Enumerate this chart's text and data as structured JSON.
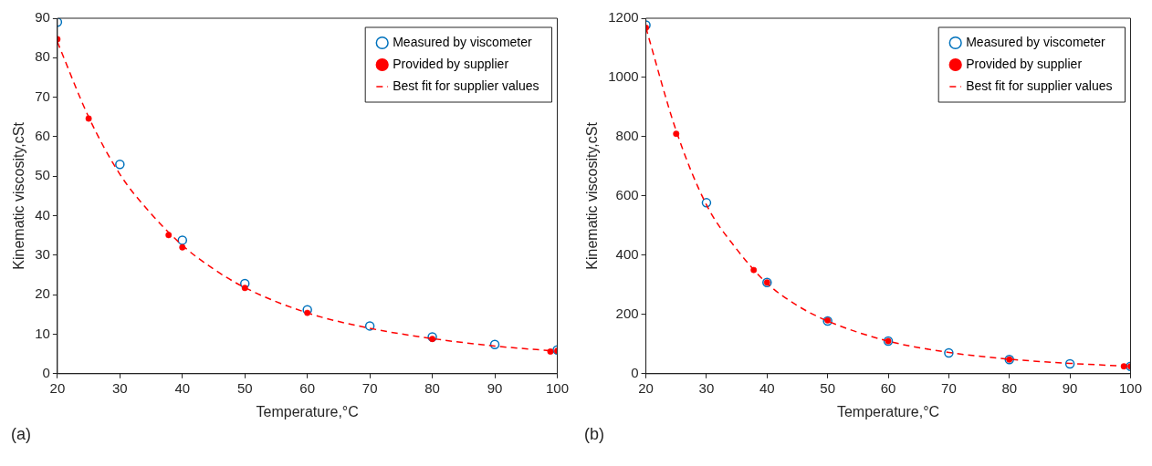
{
  "chart_data": [
    {
      "type": "scatter",
      "xlabel": "Temperature,°C",
      "ylabel": "Kinematic viscosity,cSt",
      "annotations": [
        "(a)"
      ],
      "xlim": [
        20,
        100
      ],
      "xticks": [
        20,
        30,
        40,
        50,
        60,
        70,
        80,
        90,
        100
      ],
      "ylim": [
        0,
        90
      ],
      "yticks": [
        0,
        10,
        20,
        30,
        40,
        50,
        60,
        70,
        80,
        90
      ],
      "grid": false,
      "legend": "top right",
      "series": [
        {
          "name": "Measured by viscometer",
          "type": "scatter",
          "marker": "circle",
          "color": "#0072bd",
          "x": [
            20,
            30,
            40,
            50,
            60,
            70,
            80,
            90,
            100
          ],
          "values": [
            89,
            53,
            33.8,
            22.8,
            16.2,
            12.1,
            9.3,
            7.4,
            6.0
          ]
        },
        {
          "name": "Provided by supplier",
          "type": "scatter",
          "marker": "circle",
          "color": "#ff0000",
          "x": [
            20,
            25,
            37.8,
            40,
            50,
            60,
            80,
            98.9,
            100
          ],
          "values": [
            84.7,
            64.6,
            35.1,
            32,
            21.7,
            15.4,
            8.8,
            5.6,
            5.8
          ]
        },
        {
          "name": "Best fit for supplier values",
          "type": "line",
          "marker": "none",
          "line_style": "dashed",
          "color": "#ff0000",
          "x": [
            20,
            25,
            30,
            35,
            40,
            45,
            50,
            60,
            70,
            80,
            90,
            100
          ],
          "values": [
            84,
            65,
            50.5,
            40.5,
            32.5,
            26.5,
            21.8,
            15.4,
            11.5,
            8.9,
            7.0,
            5.7
          ]
        }
      ]
    },
    {
      "type": "scatter",
      "xlabel": "Temperature,°C",
      "ylabel": "Kinematic viscosity,cSt",
      "annotations": [
        "(b)"
      ],
      "xlim": [
        20,
        100
      ],
      "xticks": [
        20,
        30,
        40,
        50,
        60,
        70,
        80,
        90,
        100
      ],
      "ylim": [
        0,
        1200
      ],
      "yticks": [
        0,
        200,
        400,
        600,
        800,
        1000,
        1200
      ],
      "grid": false,
      "legend": "top right",
      "series": [
        {
          "name": "Measured by viscometer",
          "type": "scatter",
          "marker": "circle",
          "color": "#0072bd",
          "x": [
            20,
            30,
            40,
            50,
            60,
            70,
            80,
            90,
            100
          ],
          "values": [
            1177,
            577,
            308,
            178,
            110,
            70,
            48,
            33,
            25
          ]
        },
        {
          "name": "Provided by supplier",
          "type": "scatter",
          "marker": "circle",
          "color": "#ff0000",
          "x": [
            20,
            25,
            37.8,
            40,
            50,
            60,
            80,
            98.9,
            100
          ],
          "values": [
            1168,
            810,
            350,
            308,
            180,
            110,
            48,
            25,
            25
          ]
        },
        {
          "name": "Best fit for supplier values",
          "type": "line",
          "marker": "none",
          "line_style": "dashed",
          "color": "#ff0000",
          "x": [
            20,
            25,
            30,
            35,
            40,
            45,
            50,
            60,
            70,
            80,
            90,
            100
          ],
          "values": [
            1168,
            820,
            570,
            420,
            305,
            230,
            178,
            110,
            72,
            49,
            35,
            25
          ]
        }
      ]
    }
  ]
}
